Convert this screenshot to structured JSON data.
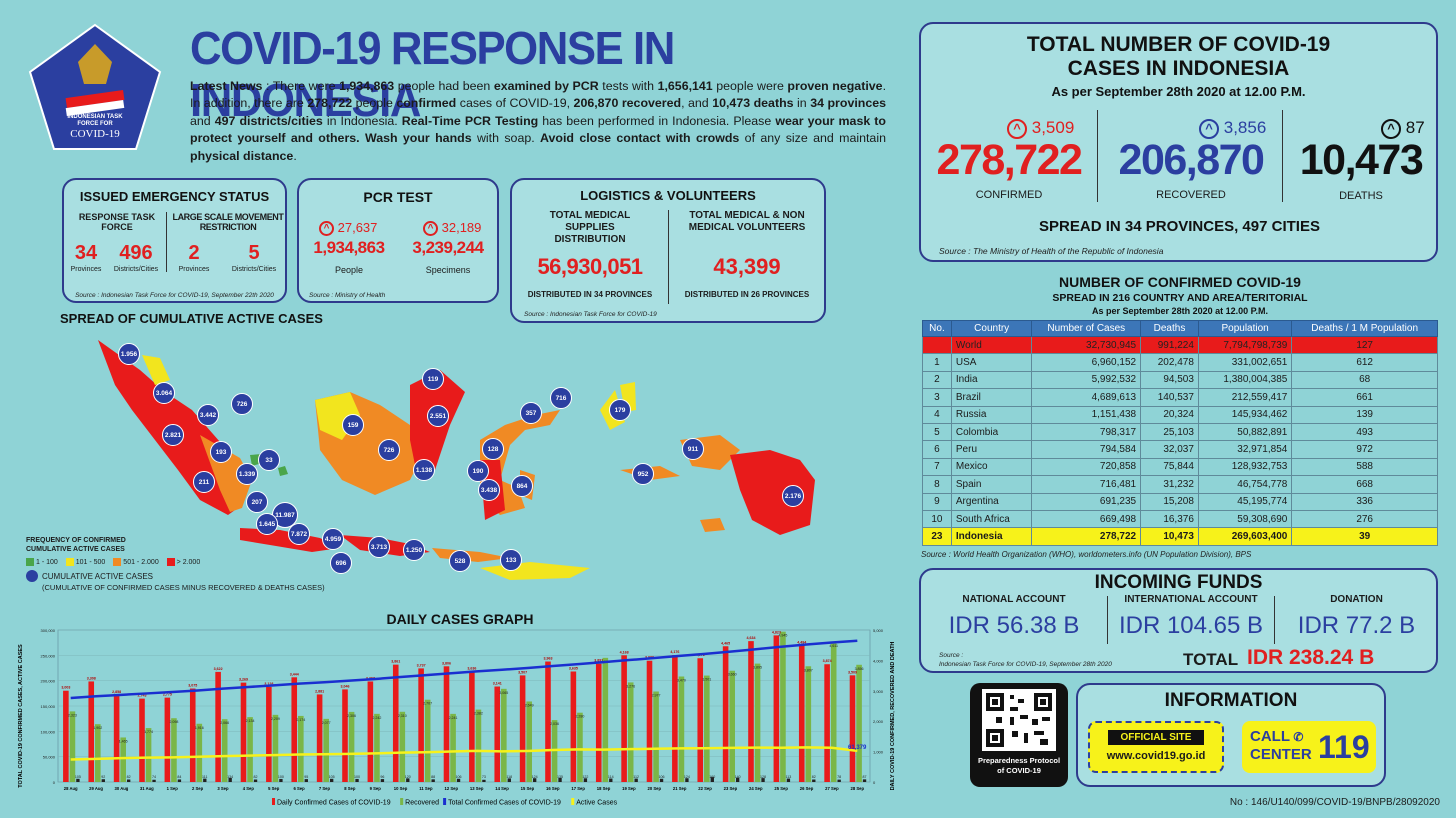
{
  "header": {
    "title": "COVID-19 RESPONSE IN INDONESIA",
    "logo_text": [
      "INDONESIAN TASK",
      "FORCE FOR",
      "COVID-19"
    ],
    "news_label": "Latest News",
    "news": [
      {
        "t": " : There were ",
        "b": false
      },
      {
        "t": "1,934,863",
        "b": true
      },
      {
        "t": " people had been ",
        "b": false
      },
      {
        "t": "examined by PCR",
        "b": true
      },
      {
        "t": " tests with ",
        "b": false
      },
      {
        "t": "1,656,141",
        "b": true
      },
      {
        "t": " people were ",
        "b": false
      },
      {
        "t": "proven negative",
        "b": true
      },
      {
        "t": ". In addition, there are ",
        "b": false
      },
      {
        "t": "278,722",
        "b": true
      },
      {
        "t": " people ",
        "b": false
      },
      {
        "t": "confirmed",
        "b": true
      },
      {
        "t": " cases of COVID-19, ",
        "b": false
      },
      {
        "t": "206,870 recovered",
        "b": true
      },
      {
        "t": ", and ",
        "b": false
      },
      {
        "t": "10,473 deaths",
        "b": true
      },
      {
        "t": " in ",
        "b": false
      },
      {
        "t": "34 provinces",
        "b": true
      },
      {
        "t": " and ",
        "b": false
      },
      {
        "t": "497 districts/cities",
        "b": true
      },
      {
        "t": " in Indonesia. ",
        "b": false
      },
      {
        "t": "Real-Time PCR Testing",
        "b": true
      },
      {
        "t": " has been performed in Indonesia. Please ",
        "b": false
      },
      {
        "t": "wear your mask to protect yourself and others. Wash your hands",
        "b": true
      },
      {
        "t": " with soap. ",
        "b": false
      },
      {
        "t": "Avoid close contact with crowds",
        "b": true
      },
      {
        "t": " of any size and maintain ",
        "b": false
      },
      {
        "t": "physical distance",
        "b": true
      },
      {
        "t": ".",
        "b": false
      }
    ]
  },
  "emergency": {
    "title": "ISSUED EMERGENCY STATUS",
    "col1": "RESPONSE TASK FORCE",
    "col2": "LARGE SCALE MOVEMENT RESTRICTION",
    "v1": "34",
    "l1": "Provinces",
    "v2": "496",
    "l2": "Districts/Cities",
    "v3": "2",
    "l3": "Provinces",
    "v4": "5",
    "l4": "Districts/Cities",
    "source": "Source : Indonesian Task Force for COVID-19, September 22th 2020"
  },
  "pcr": {
    "title": "PCR TEST",
    "inc1": "27,637",
    "inc2": "32,189",
    "v1": "1,934,863",
    "l1": "People",
    "v2": "3,239,244",
    "l2": "Specimens",
    "source": "Source : Ministry of Health"
  },
  "logistics": {
    "title": "LOGISTICS & VOLUNTEERS",
    "h1": "TOTAL MEDICAL SUPPLIES DISTRIBUTION",
    "h2": "TOTAL MEDICAL & NON MEDICAL VOLUNTEERS",
    "v1": "56,930,051",
    "v2": "43,399",
    "f1": "DISTRIBUTED IN 34 PROVINCES",
    "f2": "DISTRIBUTED IN 26 PROVINCES",
    "source": "Source : Indonesian Task Force for COVID-19"
  },
  "map": {
    "title": "SPREAD OF CUMULATIVE ACTIVE CASES",
    "legend_title": "FREQUENCY OF CONFIRMED CUMULATIVE ACTIVE CASES",
    "legend": [
      {
        "label": "1 - 100",
        "color": "#4aa54a"
      },
      {
        "label": "101 - 500",
        "color": "#f2e51e"
      },
      {
        "label": "501 - 2.000",
        "color": "#f08a24"
      },
      {
        "label": "> 2.000",
        "color": "#e81b1b"
      }
    ],
    "dot_label": "CUMULATIVE ACTIVE CASES",
    "dot_note": "(CUMULATIVE OF CONFIRMED CASES MINUS RECOVERED & DEATHS CASES)",
    "dots": [
      "1.956",
      "3.064",
      "3.442",
      "726",
      "2.821",
      "193",
      "33",
      "1.339",
      "211",
      "207",
      "11.987",
      "1.645",
      "7.872",
      "4.959",
      "3.713",
      "1.250",
      "696",
      "528",
      "133",
      "159",
      "119",
      "2.551",
      "726",
      "1.138",
      "128",
      "357",
      "716",
      "179",
      "190",
      "3.438",
      "864",
      "911",
      "952",
      "2.176"
    ]
  },
  "totals": {
    "title1": "TOTAL NUMBER OF COVID-19",
    "title2": "CASES IN INDONESIA",
    "asof": "As per September 28th 2020 at 12.00 P.M.",
    "inc_conf": "3,509",
    "inc_rec": "3,856",
    "inc_death": "87",
    "confirmed": "278,722",
    "recovered": "206,870",
    "deaths": "10,473",
    "l_conf": "CONFIRMED",
    "l_rec": "RECOVERED",
    "l_death": "DEATHS",
    "spread": "SPREAD IN 34 PROVINCES, 497 CITIES",
    "source": "Source : The Ministry of Health of the Republic of Indonesia"
  },
  "world": {
    "title": "NUMBER OF CONFIRMED COVID-19",
    "subtitle": "SPREAD IN 216 COUNTRY AND AREA/TERITORIAL",
    "asof": "As per September 28th 2020 at 12.00 P.M.",
    "headers": [
      "No.",
      "Country",
      "Number of Cases",
      "Deaths",
      "Population",
      "Deaths / 1 M Population"
    ],
    "rows": [
      [
        "",
        "World",
        "32,730,945",
        "991,224",
        "7,794,798,739",
        "127"
      ],
      [
        "1",
        "USA",
        "6,960,152",
        "202,478",
        "331,002,651",
        "612"
      ],
      [
        "2",
        "India",
        "5,992,532",
        "94,503",
        "1,380,004,385",
        "68"
      ],
      [
        "3",
        "Brazil",
        "4,689,613",
        "140,537",
        "212,559,417",
        "661"
      ],
      [
        "4",
        "Russia",
        "1,151,438",
        "20,324",
        "145,934,462",
        "139"
      ],
      [
        "5",
        "Colombia",
        "798,317",
        "25,103",
        "50,882,891",
        "493"
      ],
      [
        "6",
        "Peru",
        "794,584",
        "32,037",
        "32,971,854",
        "972"
      ],
      [
        "7",
        "Mexico",
        "720,858",
        "75,844",
        "128,932,753",
        "588"
      ],
      [
        "8",
        "Spain",
        "716,481",
        "31,232",
        "46,754,778",
        "668"
      ],
      [
        "9",
        "Argentina",
        "691,235",
        "15,208",
        "45,195,774",
        "336"
      ],
      [
        "10",
        "South Africa",
        "669,498",
        "16,376",
        "59,308,690",
        "276"
      ],
      [
        "23",
        "Indonesia",
        "278,722",
        "10,473",
        "269,603,400",
        "39"
      ]
    ],
    "source": "Source : World Health Organization (WHO), worldometers.info (UN Population Division), BPS"
  },
  "funds": {
    "title": "INCOMING FUNDS",
    "h1": "NATIONAL ACCOUNT",
    "h2": "INTERNATIONAL ACCOUNT",
    "h3": "DONATION",
    "v1": "IDR 56.38 B",
    "v2": "IDR 104.65 B",
    "v3": "IDR 77.2 B",
    "source": "Source :",
    "source2": "Indonesian Task Force for COVID-19, September 28th 2020",
    "total_label": "TOTAL",
    "total": "IDR 238.24 B"
  },
  "info": {
    "qr_label": "Preparedness Protocol of COVID-19",
    "title": "INFORMATION",
    "site_label": "OFFICIAL SITE",
    "site": "www.covid19.go.id",
    "call1": "CALL",
    "call2": "CENTER",
    "call_num": "119"
  },
  "footer": {
    "doc_no": "No : 146/U140/099/COVID-19/BNPB/28092020"
  },
  "chart_data": {
    "type": "bar",
    "title": "DAILY CASES GRAPH",
    "ylabel_left": "TOTAL COVID-19 CONFIRMED CASES, ACTIVE CASES",
    "ylabel_right": "DAILY COVID-19 CONFIRMED, RECOVERED AND DEATH",
    "yticks_left": [
      "300,000",
      "250,000",
      "200,000",
      "150,000",
      "100,000",
      "50,000",
      "0"
    ],
    "yticks_right": [
      "5,000",
      "4,000",
      "3,000",
      "2,000",
      "1,000",
      "0"
    ],
    "ylim_right": [
      0,
      5000
    ],
    "ylim_left": [
      0,
      300000
    ],
    "categories": [
      "28 Aug",
      "29 Aug",
      "30 Aug",
      "31 Aug",
      "1 Sep",
      "2 Sep",
      "3 Sep",
      "4 Sep",
      "5 Sep",
      "6 Sep",
      "7 Sep",
      "8 Sep",
      "9 Sep",
      "10 Sep",
      "11 Sep",
      "12 Sep",
      "13 Sep",
      "14 Sep",
      "15 Sep",
      "16 Sep",
      "17 Sep",
      "18 Sep",
      "19 Sep",
      "20 Sep",
      "21 Sep",
      "22 Sep",
      "23 Sep",
      "24 Sep",
      "25 Sep",
      "26 Sep",
      "27 Sep",
      "28 Sep"
    ],
    "series": [
      {
        "name": "Daily Confirmed Cases of COVID-19",
        "color": "#e81b1b",
        "values": [
          3003,
          3308,
          2858,
          2743,
          2775,
          3075,
          3622,
          3269,
          3128,
          3444,
          2881,
          3046,
          3307,
          3861,
          3737,
          3806,
          3636,
          3141,
          3507,
          3963,
          3635,
          3891,
          4168,
          3989,
          4176,
          4071,
          4465,
          4634,
          4823,
          4494,
          3874,
          3509
        ]
      },
      {
        "name": "Recovered",
        "color": "#7ab648",
        "values": [
          2323,
          1902,
          1465,
          1774,
          2098,
          1916,
          2066,
          2134,
          2209,
          2174,
          2077,
          2306,
          2242,
          2310,
          2707,
          2241,
          2382,
          3065,
          2649,
          2036,
          2280,
          4084,
          3276,
          2977,
          3470,
          3501,
          3660,
          3895,
          4945,
          3807,
          4611,
          3856
        ]
      },
      {
        "name": "Total Confirmed Cases of COVID-19"
      },
      {
        "name": "Active Cases"
      },
      {
        "name": "Deaths",
        "values": [
          105,
          92,
          82,
          74,
          84,
          111,
          134,
          82,
          100,
          95,
          105,
          100,
          96,
          120,
          88,
          106,
          73,
          118,
          124,
          135,
          122,
          114,
          112,
          106,
          124,
          160,
          140,
          128,
          113,
          82,
          78,
          87
        ]
      }
    ],
    "active_label": "61,379",
    "total_confirmed": [
      165887,
      169195,
      172053,
      174796,
      177571,
      180646,
      184268,
      187537,
      190665,
      194109,
      196989,
      200035,
      203342,
      207203,
      210940,
      214746,
      218382,
      221523,
      225030,
      228993,
      232628,
      236519,
      240687,
      244676,
      248852,
      252923,
      257388,
      262022,
      266845,
      271339,
      275213,
      278722
    ],
    "active": [
      44408,
      45755,
      47061,
      47986,
      48627,
      49744,
      51134,
      52178,
      53001,
      54175,
      54874,
      55514,
      56461,
      57892,
      58793,
      60232,
      61343,
      60464,
      61258,
      63080,
      64291,
      63983,
      64763,
      65669,
      66251,
      66661,
      67326,
      67937,
      67710,
      68315,
      67497,
      61379
    ]
  }
}
